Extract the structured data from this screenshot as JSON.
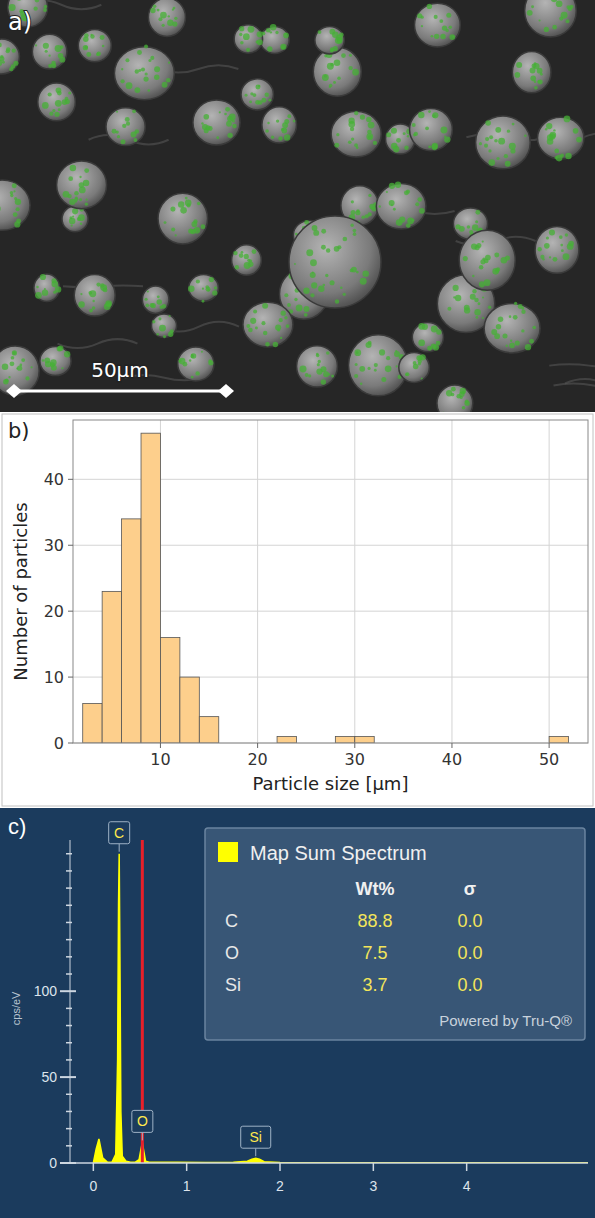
{
  "chart_data": [
    {
      "type": "image",
      "panel_label": "a)",
      "scale_bar": {
        "label": "50µm"
      }
    },
    {
      "type": "histogram",
      "panel_label": "b)",
      "x_label": "Particle size [µm]",
      "y_label": "Number of particles",
      "bins": [
        2,
        4,
        6,
        8,
        10,
        12,
        14,
        16,
        18,
        20,
        22,
        24,
        26,
        28,
        30,
        32,
        34,
        36,
        38,
        40,
        42,
        44,
        46,
        48,
        50,
        52
      ],
      "values": [
        6,
        23,
        34,
        47,
        16,
        10,
        4,
        0,
        0,
        0,
        1,
        0,
        0,
        1,
        1,
        0,
        0,
        0,
        0,
        0,
        0,
        0,
        0,
        0,
        1
      ],
      "color": "#fdcf8c",
      "xlim": [
        1,
        54
      ],
      "ylim": [
        0,
        49
      ],
      "xticks": [
        10,
        20,
        30,
        40,
        50
      ],
      "yticks": [
        0,
        10,
        20,
        30,
        40
      ],
      "grid": true
    },
    {
      "type": "line",
      "panel_label": "c)",
      "y_label": "cps/eV",
      "x": [
        0,
        0.03,
        0.06,
        0.1,
        0.15,
        0.2,
        0.24,
        0.26,
        0.27,
        0.277,
        0.285,
        0.295,
        0.31,
        0.35,
        0.4,
        0.45,
        0.49,
        0.51,
        0.525,
        0.54,
        0.56,
        0.6,
        0.7,
        0.9,
        1.2,
        1.5,
        1.65,
        1.7,
        1.74,
        1.78,
        1.83,
        2.0,
        2.5,
        3.0,
        3.5,
        4.0,
        4.5,
        5.0,
        5.3
      ],
      "values": [
        0,
        8,
        14,
        3,
        0.5,
        0.5,
        5,
        60,
        150,
        180,
        120,
        30,
        4,
        1,
        0.5,
        0.5,
        2,
        8,
        12,
        7,
        1,
        0.5,
        0.4,
        0.4,
        0.3,
        0.4,
        1,
        2.2,
        2.8,
        2.2,
        0.8,
        0.3,
        0.2,
        0.2,
        0.1,
        0.1,
        0.1,
        0.1,
        0.1
      ],
      "color": "#ffff00",
      "xlim": [
        -0.25,
        5.3
      ],
      "ylim": [
        0,
        188
      ],
      "xticks": [
        0,
        1,
        2,
        3,
        4
      ],
      "yticks": [
        0,
        50,
        100
      ],
      "y_minor_ticks": [
        10,
        20,
        30,
        40,
        60,
        70,
        80,
        90,
        110,
        120,
        130,
        140,
        150,
        160,
        170,
        180
      ],
      "highlight": {
        "x": 0.525,
        "color": "#e8202a"
      },
      "annotations": [
        {
          "text": "C",
          "x": 0.277
        },
        {
          "text": "O",
          "x": 0.525
        },
        {
          "text": "Si",
          "x": 1.74
        }
      ],
      "legend_box": {
        "title": "Map Sum Spectrum",
        "columns": [
          "Wt%",
          "σ"
        ],
        "rows": [
          [
            "C",
            "88.8",
            "0.0"
          ],
          [
            "O",
            "7.5",
            "0.0"
          ],
          [
            "Si",
            "3.7",
            "0.0"
          ]
        ],
        "footer": "Powered by Tru-Q®"
      }
    }
  ]
}
